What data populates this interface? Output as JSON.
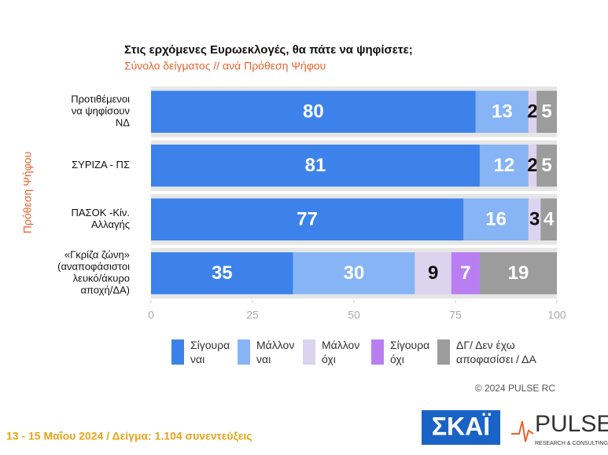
{
  "chart_data": {
    "type": "stacked-barh",
    "title": "Στις ερχόμενες Ευρωεκλογές, θα πάτε να ψηφίσετε;",
    "subtitle": "Σύνολο δείγματος // ανά Πρόθεση Ψήφου",
    "ylabel": "Πρόθεση Ψήφου",
    "categories": [
      "Προτιθέμενοι\nνα ψηφίσουν\nΝΔ",
      "ΣΥΡΙΖΑ - ΠΣ",
      "ΠΑΣΟΚ -Κίν.\nΑλλαγής",
      "«Γκρίζα ζώνη»\n(αναποφάσιστοι\nλευκό/άκυρο\nαποχή/ΔΑ)"
    ],
    "series": [
      {
        "name": "Σίγουρα\nναι",
        "color": "#3d82ea",
        "values": [
          80,
          81,
          77,
          35
        ]
      },
      {
        "name": "Μάλλον\nναι",
        "color": "#86b4f5",
        "values": [
          13,
          12,
          16,
          30
        ]
      },
      {
        "name": "Μάλλον\nόχι",
        "color": "#dcd3ef",
        "values": [
          2,
          2,
          3,
          9
        ]
      },
      {
        "name": "Σίγουρα\nόχι",
        "color": "#b97ff2",
        "values": [
          null,
          null,
          null,
          7
        ]
      },
      {
        "name": "ΔΓ/ Δεν έχω\nαποφασίσει / ΔΑ",
        "color": "#9c9c9c",
        "values": [
          5,
          5,
          4,
          19
        ]
      }
    ],
    "xlim": [
      0,
      100
    ],
    "xticks": [
      0,
      25,
      50,
      75,
      100
    ]
  },
  "footer": {
    "copyright": "© 2024 PULSE RC",
    "survey": "13 - 15  Μαΐου 2024  /  Δείγμα:  1.104 συνεντεύξεις",
    "logo_skai": "ΣΚΑΪ",
    "logo_pulse": "PULSE",
    "logo_pulse_tag": "RESEARCH & CONSULTING"
  }
}
